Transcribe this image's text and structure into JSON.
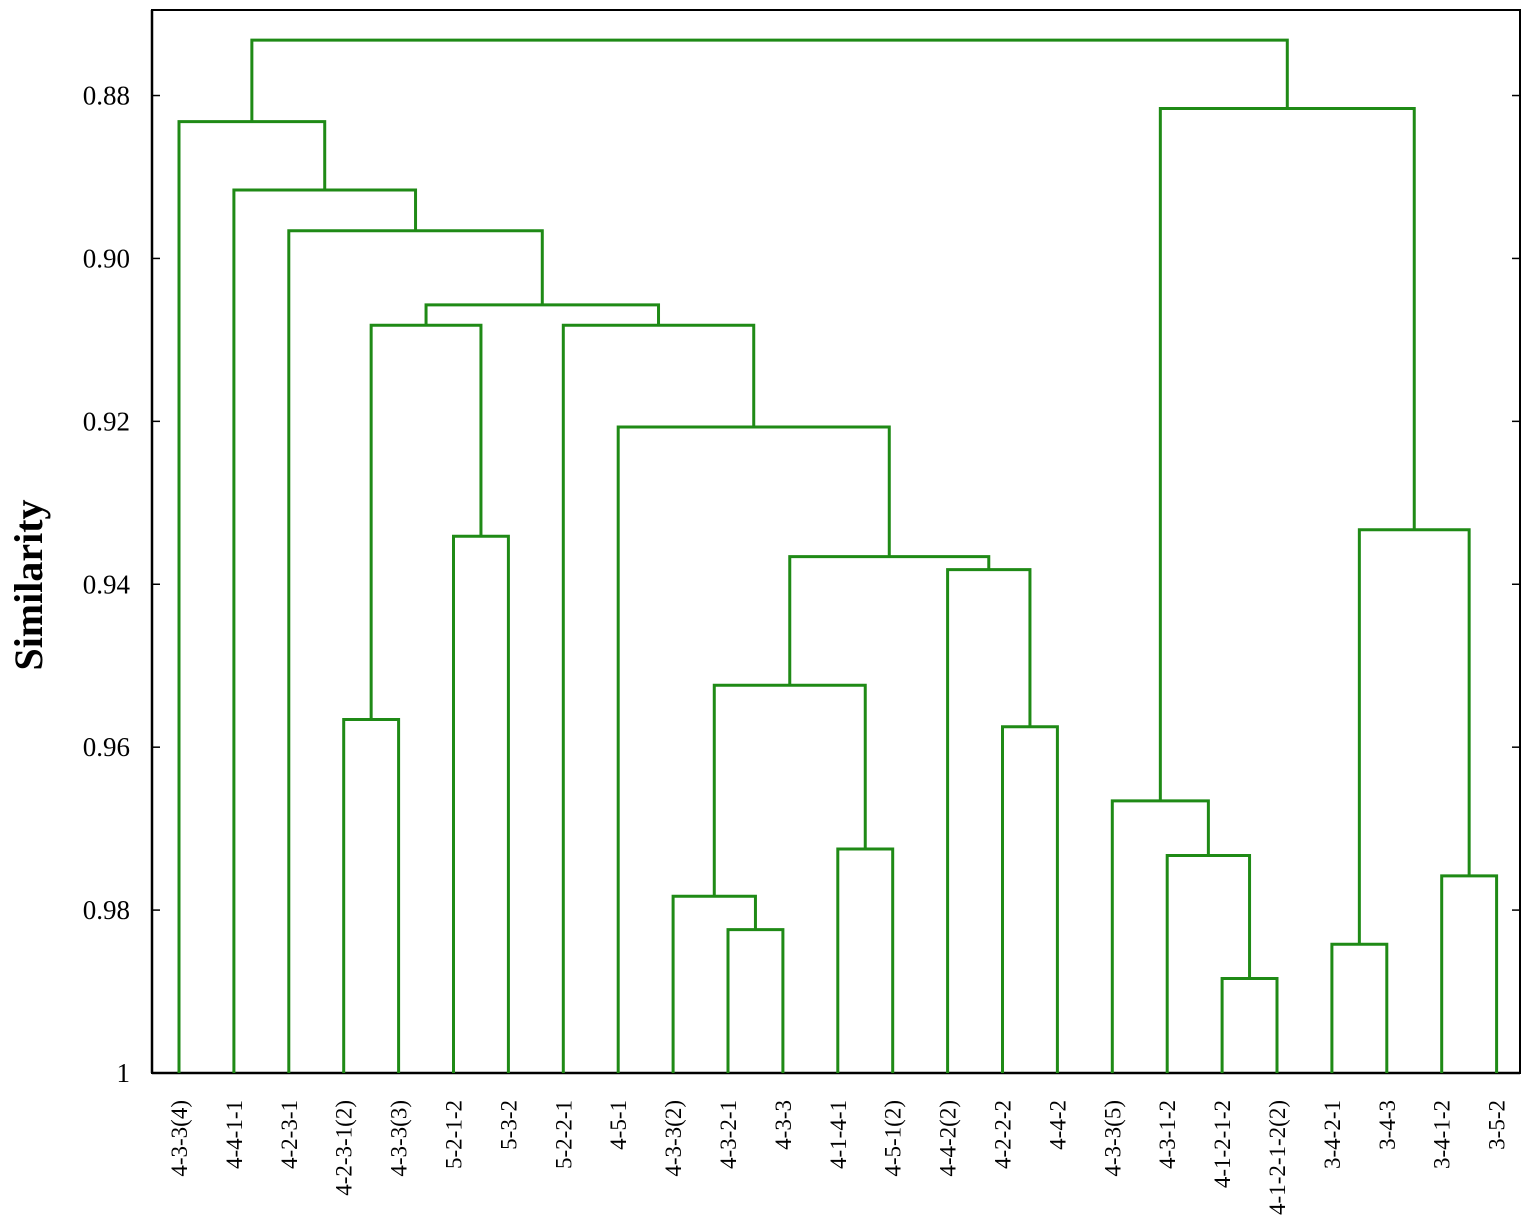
{
  "chart_data": {
    "type": "dendrogram",
    "ylabel": "Similarity",
    "xlabel": "",
    "ylim": [
      1.0,
      0.8695
    ],
    "yticks": [
      {
        "value": 0.88,
        "label": "0.88"
      },
      {
        "value": 0.9,
        "label": "0.90"
      },
      {
        "value": 0.92,
        "label": "0.92"
      },
      {
        "value": 0.94,
        "label": "0.94"
      },
      {
        "value": 0.96,
        "label": "0.96"
      },
      {
        "value": 0.98,
        "label": "0.98"
      },
      {
        "value": 1.0,
        "label": "1"
      }
    ],
    "leaves": [
      "4-3-3(4)",
      "4-4-1-1",
      "4-2-3-1",
      "4-2-3-1(2)",
      "4-3-3(3)",
      "5-2-1-2",
      "5-3-2",
      "5-2-2-1",
      "4-5-1",
      "4-3-3(2)",
      "4-3-2-1",
      "4-3-3",
      "4-1-4-1",
      "4-5-1(2)",
      "4-4-2(2)",
      "4-2-2-2",
      "4-4-2",
      "4-3-3(5)",
      "4-3-1-2",
      "4-1-2-1-2",
      "4-1-2-1-2(2)",
      "3-4-2-1",
      "3-4-3",
      "3-4-1-2",
      "3-5-2"
    ],
    "merges": [
      {
        "left": "4-3-2-1",
        "right": "4-3-3",
        "similarity": 0.9824
      },
      {
        "left": "4-3-3(2)",
        "right": "m1",
        "similarity": 0.9783
      },
      {
        "left": "4-1-4-1",
        "right": "4-5-1(2)",
        "similarity": 0.9725
      },
      {
        "left": "m2",
        "right": "m3",
        "similarity": 0.9524
      },
      {
        "left": "4-2-2-2",
        "right": "4-4-2",
        "similarity": 0.9575
      },
      {
        "left": "4-4-2(2)",
        "right": "m5",
        "similarity": 0.9382
      },
      {
        "left": "m4",
        "right": "m6",
        "similarity": 0.9366
      },
      {
        "left": "4-5-1",
        "right": "m7",
        "similarity": 0.9207
      },
      {
        "left": "5-2-2-1",
        "right": "m8",
        "similarity": 0.9082
      },
      {
        "left": "4-2-3-1(2)",
        "right": "4-3-3(3)",
        "similarity": 0.9566
      },
      {
        "left": "5-2-1-2",
        "right": "5-3-2",
        "similarity": 0.9341
      },
      {
        "left": "m10",
        "right": "m11",
        "similarity": 0.9082
      },
      {
        "left": "m12",
        "right": "m9",
        "similarity": 0.9057
      },
      {
        "left": "4-2-3-1",
        "right": "m13",
        "similarity": 0.8966
      },
      {
        "left": "4-4-1-1",
        "right": "m14",
        "similarity": 0.8916
      },
      {
        "left": "4-3-3(4)",
        "right": "m15",
        "similarity": 0.8832
      },
      {
        "left": "4-1-2-1-2",
        "right": "4-1-2-1-2(2)",
        "similarity": 0.9884
      },
      {
        "left": "4-3-1-2",
        "right": "m17",
        "similarity": 0.9733
      },
      {
        "left": "4-3-3(5)",
        "right": "m18",
        "similarity": 0.9666
      },
      {
        "left": "3-4-2-1",
        "right": "3-4-3",
        "similarity": 0.9842
      },
      {
        "left": "3-4-1-2",
        "right": "3-5-2",
        "similarity": 0.9758
      },
      {
        "left": "m20",
        "right": "m21",
        "similarity": 0.9333
      },
      {
        "left": "m19",
        "right": "m22",
        "similarity": 0.8816
      },
      {
        "left": "m16",
        "right": "m23",
        "similarity": 0.8732
      }
    ],
    "grid": false,
    "line_color": "#1f8a16"
  }
}
